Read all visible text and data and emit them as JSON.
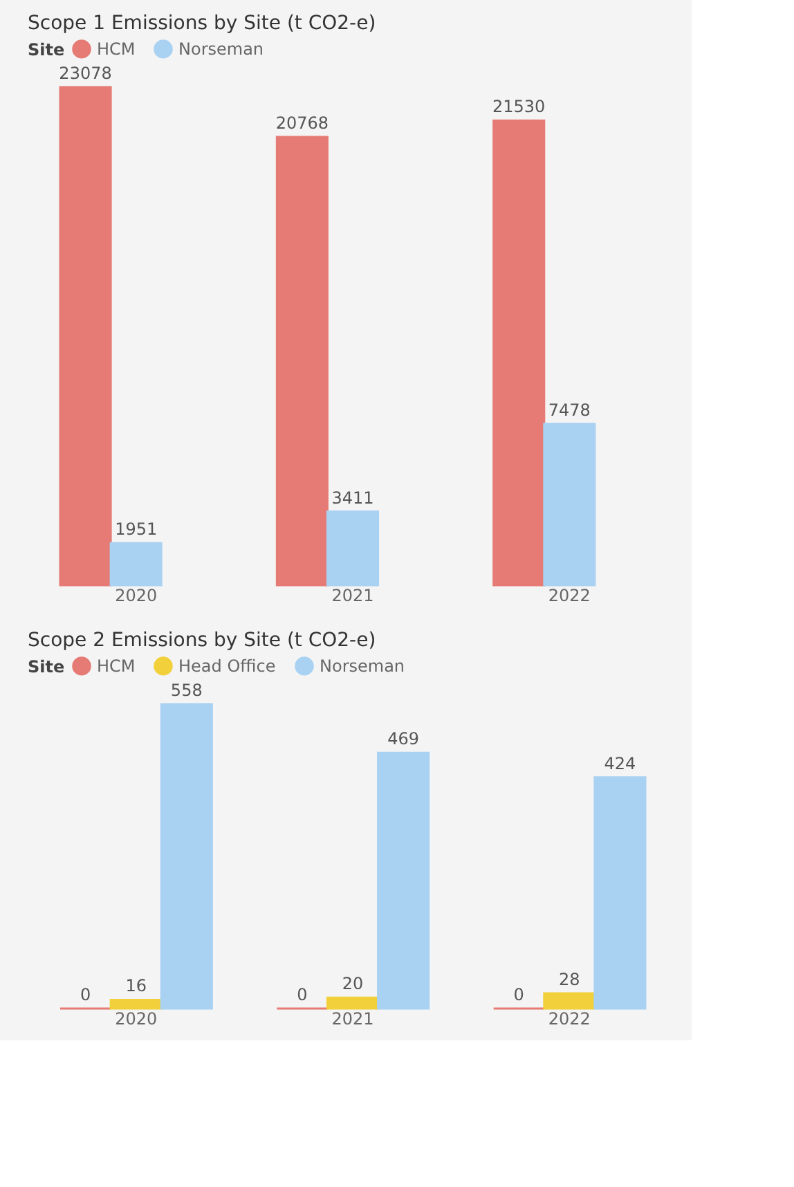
{
  "chart_data": [
    {
      "type": "bar",
      "title": "Scope 1 Emissions by Site (t CO2-e)",
      "legend_title": "Site",
      "legend": "top left",
      "data_labels": true,
      "tick_labels": "x",
      "grid": false,
      "categories": [
        "2020",
        "2021",
        "2022"
      ],
      "series": [
        {
          "name": "HCM",
          "color": "#e57b74",
          "values": [
            23078,
            20768,
            21530
          ]
        },
        {
          "name": "Norseman",
          "color": "#a9d1f2",
          "values": [
            1951,
            3411,
            7478
          ]
        }
      ]
    },
    {
      "type": "bar",
      "title": "Scope 2 Emissions by Site (t CO2-e)",
      "legend_title": "Site",
      "legend": "top left",
      "data_labels": true,
      "tick_labels": "x",
      "grid": false,
      "categories": [
        "2020",
        "2021",
        "2022"
      ],
      "series": [
        {
          "name": "HCM",
          "color": "#e57b74",
          "values": [
            0,
            0,
            0
          ]
        },
        {
          "name": "Head Office",
          "color": "#f2d03b",
          "values": [
            16,
            20,
            28
          ]
        },
        {
          "name": "Norseman",
          "color": "#a9d1f2",
          "values": [
            558,
            469,
            424
          ]
        }
      ]
    }
  ]
}
